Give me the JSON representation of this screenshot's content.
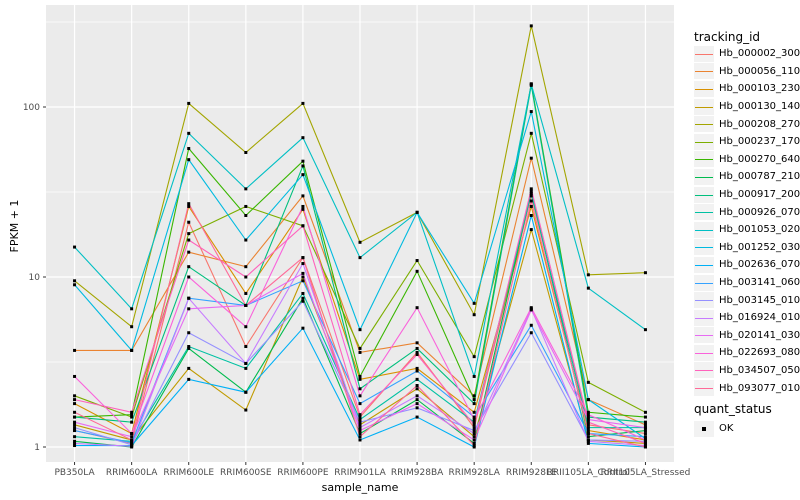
{
  "chart_data": {
    "type": "line",
    "title": "",
    "xlabel": "sample_name",
    "ylabel": "FPKM + 1",
    "y_scale": "log10",
    "y_ticks": [
      1,
      10,
      100
    ],
    "y_minor_ticks": [
      3.162,
      31.62,
      316.2
    ],
    "ylim_px_anchor": "1 -> y447, one decade = 170px",
    "grid": true,
    "panel_bg": "#EBEBEB",
    "grid_color": "#FFFFFF",
    "tick_label_color": "#4D4D4D",
    "tick_mark_color": "#333333",
    "point_color": "#000000",
    "legend_title": "tracking_id",
    "legend_position": "right",
    "quant_legend": {
      "title": "quant_status",
      "items": [
        {
          "label": "OK",
          "marker": "black-square"
        }
      ]
    },
    "categories": [
      "PB350LA",
      "RRIM600LA",
      "RRIM600LE",
      "RRIM600SE",
      "RRIM600PE",
      "RRIM901LA",
      "RRIM928BA",
      "RRIM928LA",
      "RRIM928LE",
      "RRII105LA_Control",
      "RRII105LA_Stressed"
    ],
    "series": [
      {
        "name": "Hb_000002_300",
        "color": "#F8766D",
        "values": [
          1.25,
          1.05,
          21,
          3.9,
          13,
          1.5,
          3.6,
          1.3,
          30,
          1.35,
          1.2
        ]
      },
      {
        "name": "Hb_000056_110",
        "color": "#EA8331",
        "values": [
          3.7,
          3.7,
          14,
          11.5,
          30,
          3.6,
          4.1,
          2.0,
          50,
          1.9,
          1.35
        ]
      },
      {
        "name": "Hb_000103_230",
        "color": "#D89000",
        "values": [
          1.8,
          1.2,
          26,
          8.0,
          25,
          2.5,
          2.9,
          1.6,
          26,
          1.25,
          1.1
        ]
      },
      {
        "name": "Hb_000130_140",
        "color": "#C09B00",
        "values": [
          1.35,
          1.1,
          2.9,
          1.65,
          10,
          1.35,
          2.2,
          1.15,
          19,
          1.1,
          1.05
        ]
      },
      {
        "name": "Hb_000208_270",
        "color": "#A3A500",
        "values": [
          9.5,
          5.1,
          105,
          54,
          105,
          16,
          24,
          6.0,
          300,
          10.3,
          10.6
        ]
      },
      {
        "name": "Hb_000237_170",
        "color": "#7CAE00",
        "values": [
          2.0,
          1.5,
          18,
          26,
          20,
          3.8,
          12.5,
          3.4,
          70,
          2.4,
          1.6
        ]
      },
      {
        "name": "Hb_000270_640",
        "color": "#39B600",
        "values": [
          1.5,
          1.55,
          57,
          23,
          48,
          2.6,
          10.8,
          1.9,
          137,
          1.6,
          1.5
        ]
      },
      {
        "name": "Hb_000787_210",
        "color": "#00BB4E",
        "values": [
          1.08,
          1.0,
          3.8,
          2.1,
          7.5,
          1.2,
          1.9,
          1.05,
          32,
          1.15,
          1.25
        ]
      },
      {
        "name": "Hb_000917_200",
        "color": "#00BF7D",
        "values": [
          1.5,
          1.4,
          11.5,
          6.8,
          45,
          2.2,
          3.8,
          1.8,
          134,
          1.5,
          1.4
        ]
      },
      {
        "name": "Hb_000926_070",
        "color": "#00C1A3",
        "values": [
          1.15,
          1.08,
          3.9,
          2.9,
          8.0,
          1.45,
          2.5,
          1.4,
          31,
          1.3,
          1.3
        ]
      },
      {
        "name": "Hb_001053_020",
        "color": "#00BFC4",
        "values": [
          15,
          6.5,
          70,
          33,
          66,
          13,
          24,
          2.6,
          136,
          8.6,
          4.9
        ]
      },
      {
        "name": "Hb_001252_030",
        "color": "#00BAE0",
        "values": [
          9.0,
          3.7,
          49,
          16.5,
          40,
          4.9,
          24,
          7.0,
          94,
          1.9,
          1.12
        ]
      },
      {
        "name": "Hb_002636_070",
        "color": "#00B0F6",
        "values": [
          1.02,
          1.02,
          2.5,
          2.1,
          5.0,
          1.1,
          1.5,
          1.0,
          23,
          1.05,
          1.0
        ]
      },
      {
        "name": "Hb_003141_060",
        "color": "#35A2FF",
        "values": [
          1.25,
          1.06,
          7.5,
          6.8,
          9.5,
          1.8,
          2.8,
          1.5,
          5.2,
          1.2,
          1.15
        ]
      },
      {
        "name": "Hb_003145_010",
        "color": "#9590FF",
        "values": [
          1.3,
          1.03,
          4.7,
          3.1,
          7.2,
          1.4,
          1.7,
          1.25,
          4.7,
          1.1,
          1.08
        ]
      },
      {
        "name": "Hb_016924_010",
        "color": "#C77CFF",
        "values": [
          1.05,
          1.01,
          7.5,
          3.1,
          12,
          1.3,
          2.0,
          1.2,
          6.5,
          1.08,
          1.02
        ]
      },
      {
        "name": "Hb_020141_030",
        "color": "#E76BF3",
        "values": [
          1.4,
          1.15,
          6.5,
          6.8,
          10.5,
          1.25,
          1.8,
          1.1,
          6.4,
          1.45,
          1.3
        ]
      },
      {
        "name": "Hb_022693_080",
        "color": "#FA62DB",
        "values": [
          2.6,
          1.2,
          10,
          5.1,
          26,
          2.0,
          6.6,
          1.45,
          6.6,
          1.55,
          1.1
        ]
      },
      {
        "name": "Hb_034507_050",
        "color": "#FF62BC",
        "values": [
          1.9,
          1.6,
          16.5,
          10,
          20,
          1.55,
          3.5,
          1.35,
          33,
          1.4,
          1.05
        ]
      },
      {
        "name": "Hb_093077_010",
        "color": "#FF6A98",
        "values": [
          1.6,
          1.1,
          27,
          6.8,
          13,
          1.15,
          2.3,
          1.02,
          28,
          1.2,
          1.0
        ]
      }
    ]
  }
}
